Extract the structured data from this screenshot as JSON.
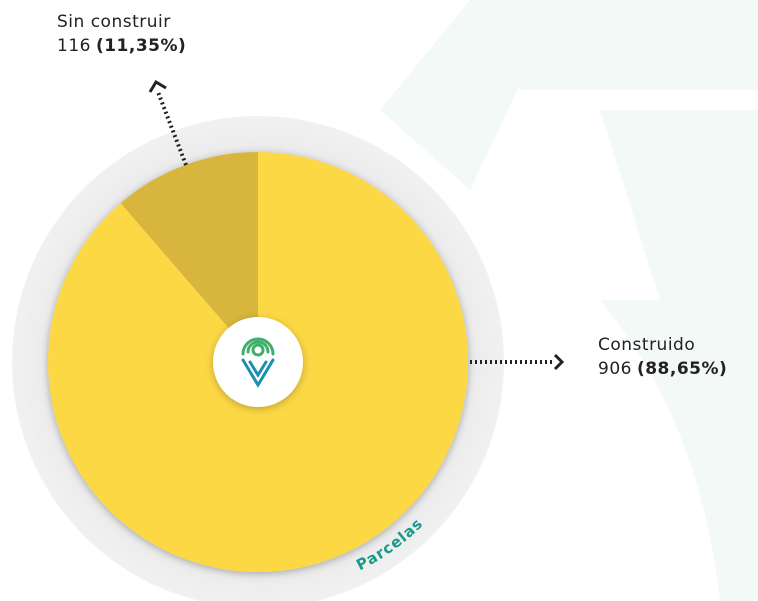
{
  "chart_data": {
    "type": "pie",
    "categories": [
      "Sin construir",
      "Construido"
    ],
    "values": [
      116,
      906
    ],
    "percent_labels": [
      "(11,35%)",
      "(88,65%)"
    ],
    "colors": [
      "#d8b63c",
      "#fdd845"
    ],
    "ring_label": "Parcelas"
  }
}
